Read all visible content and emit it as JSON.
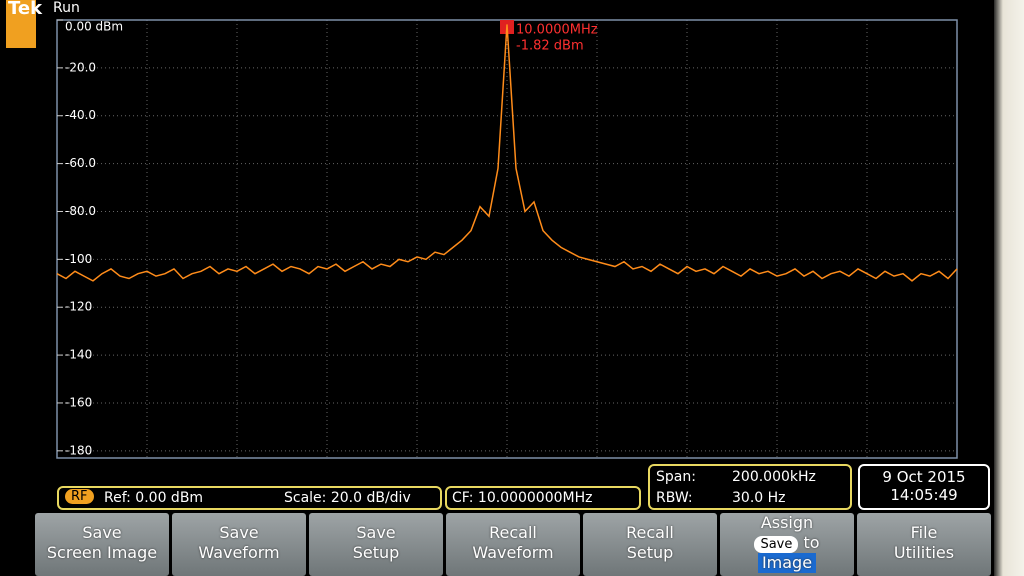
{
  "header": {
    "brand": "Tek",
    "status": "Run"
  },
  "chart_data": {
    "type": "line",
    "color": "#ff8c1a",
    "grid": true,
    "ylim": [
      -183,
      0
    ],
    "yticks": [
      {
        "value": 0,
        "label": "0.00 dBm"
      },
      {
        "value": -20,
        "label": "-20.0"
      },
      {
        "value": -40,
        "label": "-40.0"
      },
      {
        "value": -60,
        "label": "-60.0"
      },
      {
        "value": -80,
        "label": "-80.0"
      },
      -100,
      -120,
      -140,
      -160,
      -180
    ],
    "xlim": [
      9.9,
      10.1
    ],
    "marker": {
      "frequency": "10.0000MHz",
      "amplitude": "-1.82 dBm"
    },
    "x": [
      9.9,
      9.902,
      9.904,
      9.906,
      9.908,
      9.91,
      9.912,
      9.914,
      9.916,
      9.918,
      9.92,
      9.922,
      9.924,
      9.926,
      9.928,
      9.93,
      9.932,
      9.934,
      9.936,
      9.938,
      9.94,
      9.942,
      9.944,
      9.946,
      9.948,
      9.95,
      9.952,
      9.954,
      9.956,
      9.958,
      9.96,
      9.962,
      9.964,
      9.966,
      9.968,
      9.97,
      9.972,
      9.974,
      9.976,
      9.978,
      9.98,
      9.982,
      9.984,
      9.986,
      9.988,
      9.99,
      9.992,
      9.994,
      9.996,
      9.998,
      10,
      10.002,
      10.004,
      10.006,
      10.008,
      10.01,
      10.012,
      10.014,
      10.016,
      10.018,
      10.02,
      10.022,
      10.024,
      10.026,
      10.028,
      10.03,
      10.032,
      10.034,
      10.036,
      10.038,
      10.04,
      10.042,
      10.044,
      10.046,
      10.048,
      10.05,
      10.052,
      10.054,
      10.056,
      10.058,
      10.06,
      10.062,
      10.064,
      10.066,
      10.068,
      10.07,
      10.072,
      10.074,
      10.076,
      10.078,
      10.08,
      10.082,
      10.084,
      10.086,
      10.088,
      10.09,
      10.092,
      10.094,
      10.096,
      10.098,
      10.1
    ],
    "values": [
      -106,
      -108,
      -105,
      -107,
      -109,
      -106,
      -104,
      -107,
      -108,
      -106,
      -105,
      -107,
      -106,
      -104,
      -108,
      -106,
      -105,
      -103,
      -106,
      -104,
      -105,
      -103,
      -106,
      -104,
      -102,
      -105,
      -103,
      -104,
      -106,
      -103,
      -104,
      -102,
      -105,
      -103,
      -101,
      -104,
      -102,
      -103,
      -100,
      -101,
      -99,
      -100,
      -97,
      -98,
      -95,
      -92,
      -88,
      -78,
      -82,
      -62,
      -1.82,
      -62,
      -80,
      -76,
      -88,
      -92,
      -95,
      -97,
      -99,
      -100,
      -101,
      -102,
      -103,
      -101,
      -104,
      -103,
      -105,
      -102,
      -104,
      -106,
      -103,
      -105,
      -104,
      -106,
      -103,
      -105,
      -107,
      -104,
      -106,
      -105,
      -107,
      -106,
      -104,
      -107,
      -105,
      -108,
      -106,
      -105,
      -107,
      -104,
      -106,
      -108,
      -105,
      -107,
      -106,
      -109,
      -106,
      -107,
      -105,
      -108,
      -104
    ]
  },
  "status_bar": {
    "source": "RF",
    "reference": "Ref: 0.00 dBm",
    "scale": "Scale: 20.0 dB/div",
    "center_frequency": "CF:  10.0000000MHz",
    "span_label": "Span:",
    "span_value": "200.000kHz",
    "rbw_label": "RBW:",
    "rbw_value": "30.0 Hz",
    "date": "9 Oct 2015",
    "time": "14:05:49"
  },
  "menu": [
    [
      "Save",
      "Screen Image"
    ],
    [
      "Save",
      "Waveform"
    ],
    [
      "Save",
      "Setup"
    ],
    [
      "Recall",
      "Waveform"
    ],
    [
      "Recall",
      "Setup"
    ],
    [
      "Assign",
      "Save",
      "to",
      "Image"
    ],
    [
      "File",
      "Utilities"
    ]
  ]
}
